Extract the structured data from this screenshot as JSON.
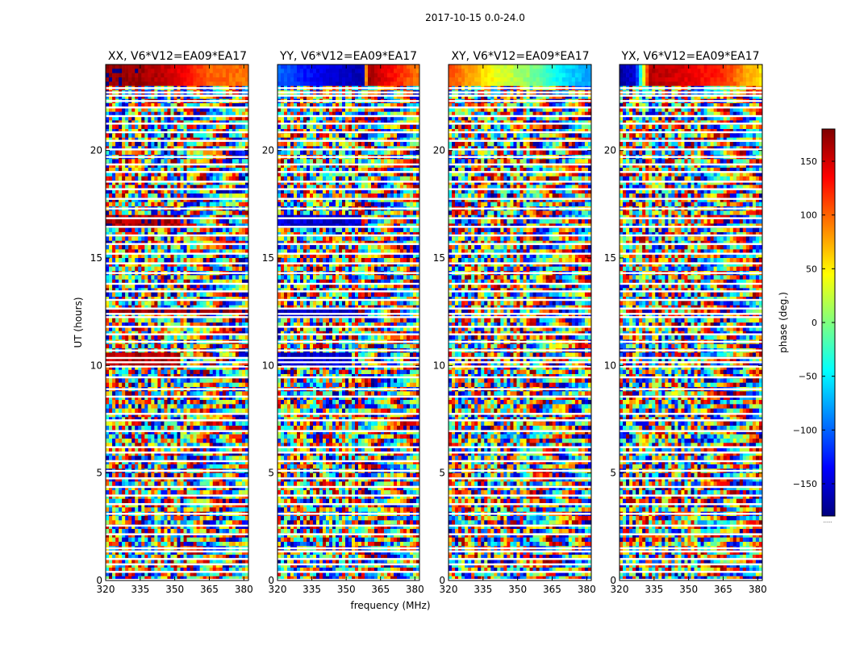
{
  "figure": {
    "suptitle": "2017-10-15 0.0-24.0"
  },
  "chart_data": {
    "type": "heatmap",
    "shared_ylabel": "UT (hours)",
    "shared_xlabel": "frequency (MHz)",
    "x_range": [
      320,
      382
    ],
    "y_range": [
      0,
      24
    ],
    "xticks": [
      320,
      335,
      350,
      365,
      380
    ],
    "yticks": [
      0,
      5,
      10,
      15,
      20
    ],
    "panels": [
      {
        "title": "XX, V6*V12=EA09*EA17",
        "polarization": "XX"
      },
      {
        "title": "YY, V6*V12=EA09*EA17",
        "polarization": "YY"
      },
      {
        "title": "XY, V6*V12=EA09*EA17",
        "polarization": "XY"
      },
      {
        "title": "YX, V6*V12=EA09*EA17",
        "polarization": "YX"
      }
    ],
    "colorbar": {
      "label": "phase (deg.)",
      "range": [
        -180,
        180
      ],
      "ticks": [
        150,
        100,
        50,
        0,
        -50,
        -100,
        -150
      ],
      "tick_labels": [
        "150",
        "100",
        "50",
        "0",
        "−50",
        "−100",
        "−150"
      ],
      "colormap": "jet",
      "footer": "......"
    },
    "flagged_hours": [
      0.03,
      0.4,
      0.75,
      1.0,
      1.35,
      1.5,
      2.15,
      2.55,
      3.1,
      3.55,
      3.95,
      4.35,
      4.75,
      5.1,
      5.55,
      5.95,
      6.2,
      6.95,
      7.45,
      7.75,
      8.55,
      8.9,
      9.45,
      9.95,
      10.15,
      10.35,
      10.7,
      11.1,
      11.45,
      11.8,
      12.25,
      12.4,
      12.65,
      13.05,
      13.45,
      13.8,
      14.3,
      14.75,
      15.2,
      15.65,
      16.05,
      16.45,
      16.85,
      17.3,
      17.75,
      18.2,
      18.55,
      19.0,
      19.35,
      19.7,
      20.05,
      20.45,
      20.85,
      21.25,
      21.6,
      22.0,
      22.3,
      22.55,
      22.7,
      22.9
    ],
    "bands": [
      {
        "panel": "XX",
        "y": [
          10.1,
          10.6
        ],
        "x": [
          320,
          353
        ],
        "phase": 160
      },
      {
        "panel": "XX",
        "y": [
          12.35,
          12.55
        ],
        "x": [
          320,
          382
        ],
        "phase": 170
      },
      {
        "panel": "XX",
        "y": [
          16.5,
          16.9
        ],
        "x": [
          320,
          352
        ],
        "phase": 165
      },
      {
        "panel": "YY",
        "y": [
          10.1,
          10.6
        ],
        "x": [
          320,
          353
        ],
        "phase": -150
      },
      {
        "panel": "YY",
        "y": [
          12.2,
          12.55
        ],
        "x": [
          320,
          355
        ],
        "phase": -160
      },
      {
        "panel": "YY",
        "y": [
          16.5,
          16.9
        ],
        "x": [
          320,
          356
        ],
        "phase": -150
      }
    ],
    "top_segment": {
      "y_range": [
        22.95,
        24.0
      ],
      "XX": [
        [
          320,
          175
        ],
        [
          335,
          170
        ],
        [
          350,
          150
        ],
        [
          365,
          100
        ],
        [
          382,
          95
        ]
      ],
      "YY": [
        [
          320,
          -100
        ],
        [
          338,
          -140
        ],
        [
          358,
          -165
        ],
        [
          359,
          170
        ],
        [
          382,
          90
        ]
      ],
      "XY": [
        [
          320,
          110
        ],
        [
          340,
          40
        ],
        [
          355,
          5
        ],
        [
          372,
          -60
        ],
        [
          382,
          -80
        ]
      ],
      "YX": [
        [
          320,
          -170
        ],
        [
          327,
          -150
        ],
        [
          333,
          160
        ],
        [
          345,
          150
        ],
        [
          365,
          120
        ],
        [
          382,
          50
        ]
      ]
    }
  }
}
